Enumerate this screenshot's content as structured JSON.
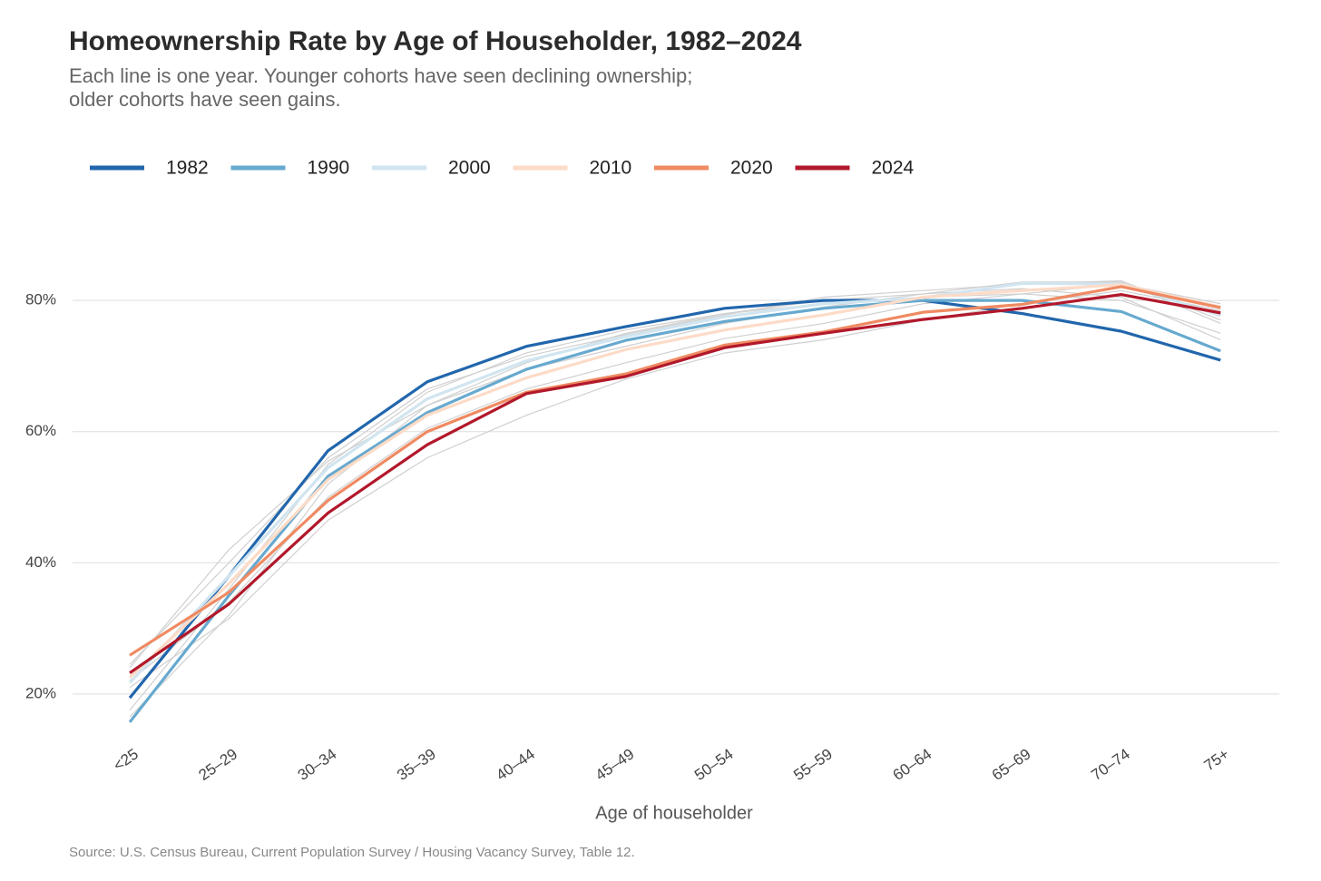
{
  "chart_data": {
    "type": "line",
    "title": "Homeownership Rate by Age of Householder, 1982–2024",
    "subtitle": [
      "Each line is one year. Younger cohorts have seen declining ownership;",
      "older cohorts have seen gains."
    ],
    "x_label": "Age of householder",
    "source": "Source: U.S. Census Bureau, Current Population Survey / Housing Vacancy Survey, Table 12.",
    "categories": [
      "<25",
      "25–29",
      "30–34",
      "35–39",
      "40–44",
      "45–49",
      "50–54",
      "55–59",
      "60–64",
      "65–69",
      "70–74",
      "75+"
    ],
    "ylim": [
      15,
      85
    ],
    "yticks": [
      {
        "value": 20,
        "label": "20%"
      },
      {
        "value": 40,
        "label": "40%"
      },
      {
        "value": 60,
        "label": "60%"
      },
      {
        "value": 80,
        "label": "80%"
      }
    ],
    "grid": true,
    "legend": "top-left",
    "other_color": "#d0d0d0",
    "other_years": [
      [
        17.5,
        36,
        55,
        66,
        72,
        75.5,
        78,
        79.5,
        80.5,
        81,
        80,
        75
      ],
      [
        24.5,
        40,
        56,
        66.5,
        71.5,
        74.8,
        77.8,
        80.5,
        81.5,
        82.5,
        83,
        77
      ],
      [
        22,
        34,
        50,
        60.5,
        66.5,
        70.5,
        74.2,
        76.5,
        79.5,
        81,
        82.5,
        79.5
      ],
      [
        21,
        31.5,
        46.5,
        56,
        62.5,
        68,
        72,
        74,
        77,
        79.5,
        81.5,
        78.5
      ],
      [
        16.5,
        32,
        52,
        64,
        70.5,
        75,
        78,
        80,
        81,
        81.8,
        80.5,
        74
      ],
      [
        24,
        42,
        55.5,
        64,
        69.5,
        73,
        76.5,
        79,
        81,
        82.8,
        82.8,
        76.5
      ]
    ],
    "series": [
      {
        "name": "1982",
        "color": "#2166ac",
        "values": [
          19.4,
          38,
          57.1,
          67.6,
          73,
          76,
          78.8,
          80,
          80,
          78,
          75.3,
          70.9
        ]
      },
      {
        "name": "1990",
        "color": "#67a9cf",
        "values": [
          15.7,
          35,
          53.2,
          62.9,
          69.5,
          73.9,
          76.8,
          78.8,
          80,
          80,
          78.3,
          72.3
        ]
      },
      {
        "name": "2000",
        "color": "#d1e5f0",
        "values": [
          21.7,
          38,
          54.5,
          65,
          70.8,
          74.5,
          77.5,
          79.5,
          80.4,
          82.6,
          82.5,
          77.7
        ]
      },
      {
        "name": "2010",
        "color": "#fddbc7",
        "values": [
          22.5,
          36.8,
          52.7,
          62.5,
          68.2,
          72.5,
          75.5,
          77.8,
          80.5,
          81.5,
          82.4,
          79
        ]
      },
      {
        "name": "2020",
        "color": "#ef8a62",
        "values": [
          25.9,
          35.5,
          49.5,
          60,
          66,
          68.8,
          73.2,
          75.2,
          78.2,
          79.4,
          82.1,
          78.9
        ]
      },
      {
        "name": "2024",
        "color": "#b2182b",
        "values": [
          23.2,
          33.7,
          47.6,
          58,
          65.8,
          68.4,
          72.8,
          75,
          77.1,
          78.8,
          80.9,
          78.1
        ]
      }
    ]
  }
}
